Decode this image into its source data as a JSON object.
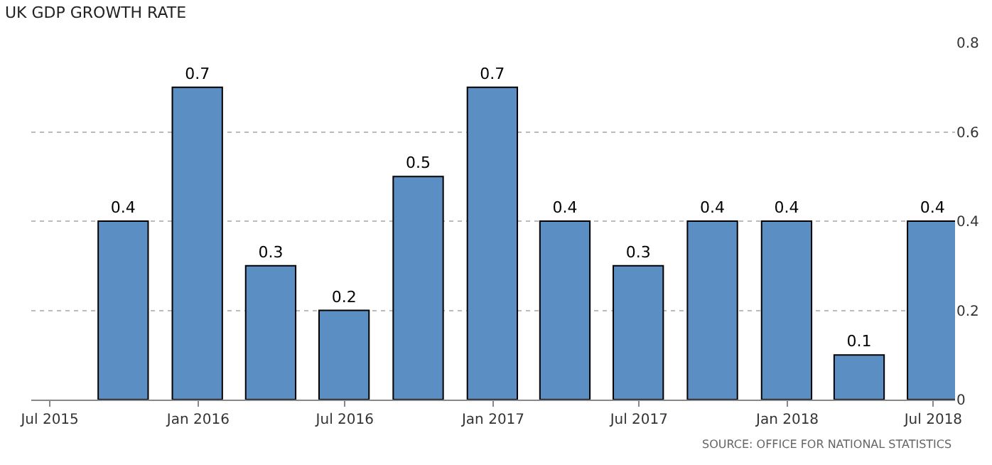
{
  "chart_data": {
    "type": "bar",
    "title": "UK GDP GROWTH RATE",
    "x": [
      "2015-09-30",
      "2015-12-31",
      "2016-03-31",
      "2016-06-30",
      "2016-09-30",
      "2016-12-31",
      "2017-03-31",
      "2017-06-30",
      "2017-09-30",
      "2017-12-31",
      "2018-03-31",
      "2018-06-30"
    ],
    "values": [
      0.4,
      0.7,
      0.3,
      0.2,
      0.5,
      0.7,
      0.4,
      0.3,
      0.4,
      0.4,
      0.1,
      0.4
    ],
    "color": "#5b8fc4",
    "data_labels": true,
    "xlim": [
      "2015-06-08",
      "2018-07-28"
    ],
    "xticks": [
      {
        "value": "2015-07-01",
        "label": "Jul 2015"
      },
      {
        "value": "2016-01-01",
        "label": "Jan 2016"
      },
      {
        "value": "2016-07-01",
        "label": "Jul 2016"
      },
      {
        "value": "2017-01-01",
        "label": "Jan 2017"
      },
      {
        "value": "2017-07-01",
        "label": "Jul 2017"
      },
      {
        "value": "2018-01-01",
        "label": "Jan 2018"
      },
      {
        "value": "2018-07-01",
        "label": "Jul 2018"
      }
    ],
    "ylim": [
      0,
      0.8
    ],
    "yticks": [
      0,
      0.2,
      0.4,
      0.6,
      0.8
    ],
    "grid": "y",
    "annotations": [
      "SOURCE: OFFICE FOR NATIONAL STATISTICS"
    ]
  }
}
